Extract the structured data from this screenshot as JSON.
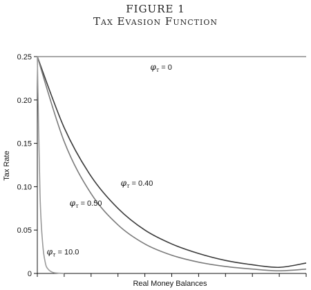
{
  "figure": {
    "label": "FIGURE 1",
    "title": "Tax Evasion Function"
  },
  "chart_data": {
    "type": "line",
    "title": "Tax Evasion Function",
    "xlabel": "Real Money Balances",
    "ylabel": "Tax Rate",
    "xlim": [
      0,
      10
    ],
    "ylim": [
      0,
      0.25
    ],
    "y_ticks": [
      "0",
      "0.05",
      "0.10",
      "0.15",
      "0.20",
      "0.25"
    ],
    "y_tick_values": [
      0,
      0.05,
      0.1,
      0.15,
      0.2,
      0.25
    ],
    "x_ticks_labeled": false,
    "x_tick_count": 11,
    "grid": false,
    "series": [
      {
        "name": "φτ = 0",
        "phi": 0,
        "color": "#8a8a8a",
        "x": [
          0,
          10
        ],
        "y": [
          0.25,
          0.25
        ]
      },
      {
        "name": "φτ = 0.40",
        "phi": 0.4,
        "color": "#3a3a3a",
        "x": [
          0,
          1,
          2,
          3,
          4,
          5,
          6,
          7,
          8,
          9,
          10
        ],
        "y": [
          0.25,
          0.168,
          0.112,
          0.075,
          0.05,
          0.034,
          0.023,
          0.015,
          0.01,
          0.007,
          0.012
        ]
      },
      {
        "name": "φτ = 0.50",
        "phi": 0.5,
        "color": "#7a7a7a",
        "x": [
          0,
          1,
          2,
          3,
          4,
          5,
          6,
          7,
          8,
          9,
          10
        ],
        "y": [
          0.25,
          0.152,
          0.092,
          0.056,
          0.034,
          0.021,
          0.013,
          0.008,
          0.005,
          0.003,
          0.005
        ]
      },
      {
        "name": "φτ = 10.0",
        "phi": 10.0,
        "color": "#9a9a9a",
        "x": [
          0,
          0.1,
          0.2,
          0.3,
          0.4,
          0.6,
          1.0
        ],
        "y": [
          0.25,
          0.092,
          0.034,
          0.012,
          0.005,
          0.001,
          0
        ]
      }
    ],
    "annotations": [
      {
        "phi": "φ",
        "sub": "τ",
        "text": " = 0",
        "at_x": 4.2,
        "at_y": 0.235
      },
      {
        "phi": "φ",
        "sub": "τ",
        "text": " = 0.40",
        "at_x": 3.1,
        "at_y": 0.101
      },
      {
        "phi": "φ",
        "sub": "τ",
        "text": " = 0.50",
        "at_x": 1.2,
        "at_y": 0.078
      },
      {
        "phi": "φ",
        "sub": "τ",
        "text": " = 10.0",
        "at_x": 0.35,
        "at_y": 0.022
      }
    ]
  }
}
